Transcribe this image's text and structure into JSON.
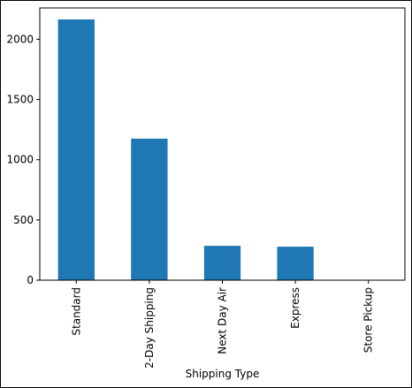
{
  "chart_data": {
    "type": "bar",
    "categories": [
      "Standard",
      "2-Day Shipping",
      "Next Day Air",
      "Express",
      "Store Pickup"
    ],
    "values": [
      2165,
      1175,
      285,
      278,
      0
    ],
    "xlabel": "Shipping Type",
    "ylabel": "",
    "ylim": [
      0,
      2260
    ],
    "yticks": [
      0,
      500,
      1000,
      1500,
      2000
    ],
    "bar_color": "#1f77b4",
    "grid": false,
    "legend": "none"
  }
}
